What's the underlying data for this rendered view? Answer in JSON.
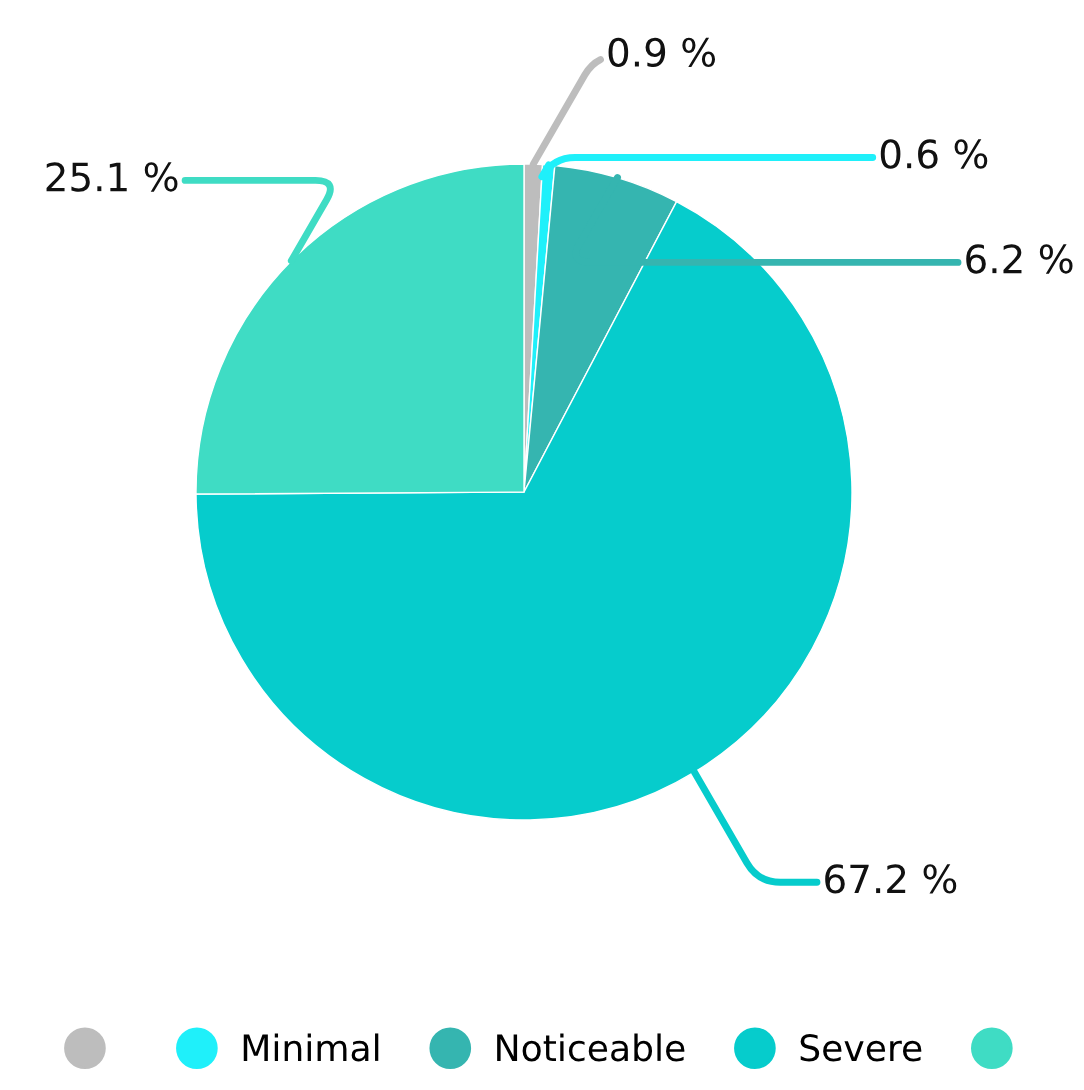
{
  "chart_data": {
    "type": "pie",
    "categories": [
      null,
      "Minimal",
      "Noticeable",
      "Severe",
      null
    ],
    "values": [
      0.9,
      0.6,
      6.2,
      67.2,
      25.1
    ],
    "colors": [
      "#bdbdbd",
      "#1ff0fa",
      "#35b5b0",
      "#06cccc",
      "#3fdcc4"
    ],
    "value_labels": [
      "0.9 %",
      "0.6 %",
      "6.2 %",
      "67.2 %",
      "25.1 %"
    ],
    "legend": "bottom"
  }
}
